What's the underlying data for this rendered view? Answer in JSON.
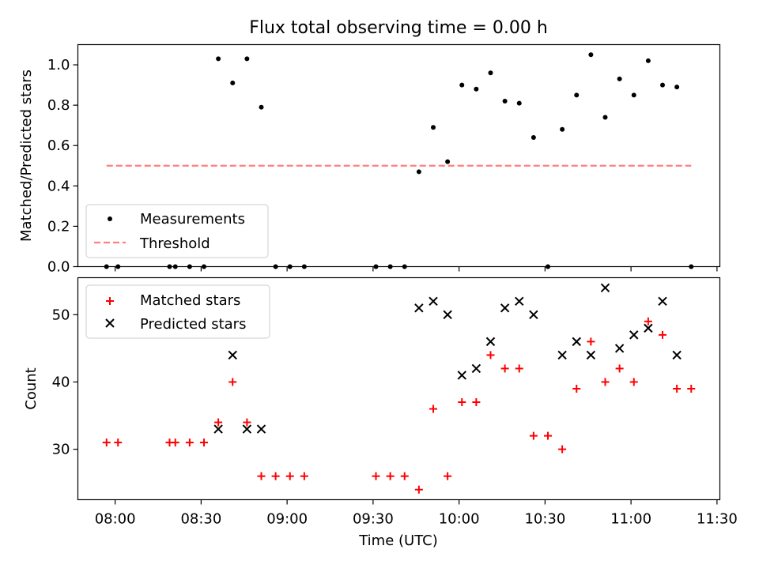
{
  "title": "Flux total observing time = 0.00 h",
  "colors": {
    "measurement": "#000000",
    "threshold": "#ff7f7f",
    "matched": "#ff0000",
    "predicted": "#000000"
  },
  "chart_data": [
    {
      "type": "scatter",
      "title": "Flux total observing time = 0.00 h",
      "ylabel": "Matched/Predicted stars",
      "xlabel": "",
      "ylim": [
        0,
        1.1
      ],
      "yticks": [
        0.0,
        0.2,
        0.4,
        0.6,
        0.8,
        1.0
      ],
      "ytick_labels": [
        "0.0",
        "0.2",
        "0.4",
        "0.6",
        "0.8",
        "1.0"
      ],
      "legend": {
        "placement": "lower-left",
        "entries": [
          {
            "name": "Measurements",
            "marker": "dot"
          },
          {
            "name": "Threshold",
            "marker": "dashed-line"
          }
        ]
      },
      "series": [
        {
          "name": "Measurements",
          "points": [
            [
              "07:57",
              0.0
            ],
            [
              "08:01",
              0.0
            ],
            [
              "08:19",
              0.0
            ],
            [
              "08:21",
              0.0
            ],
            [
              "08:26",
              0.0
            ],
            [
              "08:31",
              0.0
            ],
            [
              "08:36",
              1.03
            ],
            [
              "08:41",
              0.91
            ],
            [
              "08:46",
              1.03
            ],
            [
              "08:51",
              0.79
            ],
            [
              "08:56",
              0.0
            ],
            [
              "09:01",
              0.0
            ],
            [
              "09:06",
              0.0
            ],
            [
              "09:31",
              0.0
            ],
            [
              "09:36",
              0.0
            ],
            [
              "09:41",
              0.0
            ],
            [
              "09:46",
              0.47
            ],
            [
              "09:51",
              0.69
            ],
            [
              "09:56",
              0.52
            ],
            [
              "10:01",
              0.9
            ],
            [
              "10:06",
              0.88
            ],
            [
              "10:11",
              0.96
            ],
            [
              "10:16",
              0.82
            ],
            [
              "10:21",
              0.81
            ],
            [
              "10:26",
              0.64
            ],
            [
              "10:31",
              0.0
            ],
            [
              "10:36",
              0.68
            ],
            [
              "10:41",
              0.85
            ],
            [
              "10:46",
              1.05
            ],
            [
              "10:51",
              0.74
            ],
            [
              "10:56",
              0.93
            ],
            [
              "11:01",
              0.85
            ],
            [
              "11:06",
              1.02
            ],
            [
              "11:11",
              0.9
            ],
            [
              "11:16",
              0.89
            ],
            [
              "11:21",
              0.0
            ]
          ]
        },
        {
          "name": "Threshold",
          "x": [
            "07:57",
            "11:21"
          ],
          "y": [
            0.5,
            0.5
          ]
        }
      ]
    },
    {
      "type": "scatter",
      "ylabel": "Count",
      "xlabel": "Time (UTC)",
      "ylim": [
        22.5,
        55.5
      ],
      "yticks": [
        30,
        40,
        50
      ],
      "ytick_labels": [
        "30",
        "40",
        "50"
      ],
      "xlim": [
        "07:47",
        "11:31"
      ],
      "xticks": [
        "08:00",
        "08:30",
        "09:00",
        "09:30",
        "10:00",
        "10:30",
        "11:00",
        "11:30"
      ],
      "xtick_labels": [
        "08:00",
        "08:30",
        "09:00",
        "09:30",
        "10:00",
        "10:30",
        "11:00",
        "11:30"
      ],
      "legend": {
        "placement": "top-left",
        "entries": [
          {
            "name": "Matched stars",
            "marker": "plus"
          },
          {
            "name": "Predicted stars",
            "marker": "x"
          }
        ]
      },
      "series": [
        {
          "name": "Matched stars",
          "points": [
            [
              "07:57",
              31
            ],
            [
              "08:01",
              31
            ],
            [
              "08:19",
              31
            ],
            [
              "08:21",
              31
            ],
            [
              "08:26",
              31
            ],
            [
              "08:31",
              31
            ],
            [
              "08:36",
              34
            ],
            [
              "08:41",
              40
            ],
            [
              "08:46",
              34
            ],
            [
              "08:51",
              26
            ],
            [
              "08:56",
              26
            ],
            [
              "09:01",
              26
            ],
            [
              "09:06",
              26
            ],
            [
              "09:31",
              26
            ],
            [
              "09:36",
              26
            ],
            [
              "09:41",
              26
            ],
            [
              "09:46",
              24
            ],
            [
              "09:51",
              36
            ],
            [
              "09:56",
              26
            ],
            [
              "10:01",
              37
            ],
            [
              "10:06",
              37
            ],
            [
              "10:11",
              44
            ],
            [
              "10:16",
              42
            ],
            [
              "10:21",
              42
            ],
            [
              "10:26",
              32
            ],
            [
              "10:31",
              32
            ],
            [
              "10:36",
              30
            ],
            [
              "10:41",
              39
            ],
            [
              "10:46",
              46
            ],
            [
              "10:51",
              40
            ],
            [
              "10:56",
              42
            ],
            [
              "11:01",
              40
            ],
            [
              "11:06",
              49
            ],
            [
              "11:11",
              47
            ],
            [
              "11:16",
              39
            ],
            [
              "11:21",
              39
            ]
          ]
        },
        {
          "name": "Predicted stars",
          "points": [
            [
              "08:36",
              33
            ],
            [
              "08:41",
              44
            ],
            [
              "08:46",
              33
            ],
            [
              "08:51",
              33
            ],
            [
              "09:46",
              51
            ],
            [
              "09:51",
              52
            ],
            [
              "09:56",
              50
            ],
            [
              "10:01",
              41
            ],
            [
              "10:06",
              42
            ],
            [
              "10:11",
              46
            ],
            [
              "10:16",
              51
            ],
            [
              "10:21",
              52
            ],
            [
              "10:26",
              50
            ],
            [
              "10:36",
              44
            ],
            [
              "10:41",
              46
            ],
            [
              "10:46",
              44
            ],
            [
              "10:51",
              54
            ],
            [
              "10:56",
              45
            ],
            [
              "11:01",
              47
            ],
            [
              "11:06",
              48
            ],
            [
              "11:11",
              52
            ],
            [
              "11:16",
              44
            ]
          ]
        }
      ]
    }
  ]
}
